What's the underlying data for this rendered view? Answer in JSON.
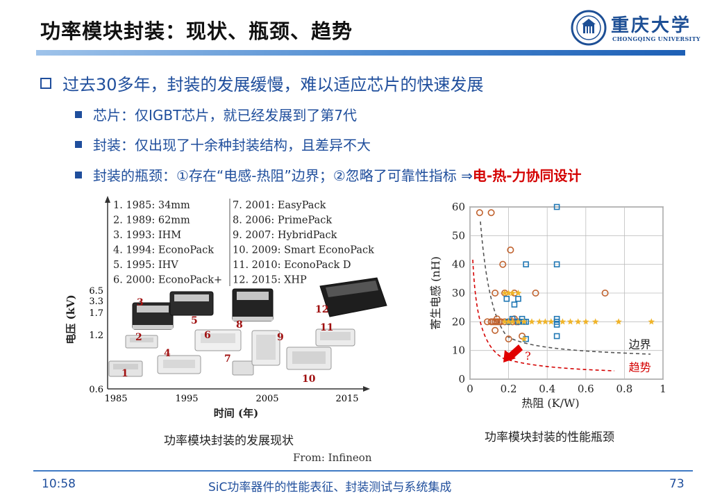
{
  "title": "功率模块封装：现状、瓶颈、趋势",
  "logo": {
    "cn": "重庆大学",
    "en": "CHONGQING UNIVERSITY"
  },
  "bullets": {
    "main": "过去30多年，封装的发展缓慢，难以适应芯片的快速发展",
    "sub1": "芯片：仅IGBT芯片，就已经发展到了第7代",
    "sub2": "封装：仅出现了十余种封装结构，且差异不大",
    "sub3_prefix": "封装的瓶颈：①存在“电感-热阻”边界；②忽略了可靠性指标 ⇒ ",
    "sub3_emph": "电-热-力协同设计"
  },
  "left_figure": {
    "legend_col1": [
      "1. 1985: 34mm",
      "2. 1989: 62mm",
      "3. 1993: IHM",
      "4. 1994: EconoPack",
      "5. 1995: IHV",
      "6. 2000: EconoPack+"
    ],
    "legend_col2": [
      "7. 2001: EasyPack",
      "8. 2006: PrimePack",
      "9. 2007: HybridPack",
      "10. 2009: Smart EconoPack",
      "11. 2010: EconoPack D",
      "12. 2015: XHP"
    ],
    "ylabel": "电压 (kV)",
    "xlabel": "时间 (年)",
    "yticks": [
      "6.5",
      "3.3",
      "1.7",
      "1.2",
      "0.6"
    ],
    "xticks": [
      "1985",
      "1995",
      "2005",
      "2015"
    ],
    "module_labels": [
      "1",
      "2",
      "3",
      "4",
      "5",
      "6",
      "7",
      "8",
      "9",
      "10",
      "11",
      "12"
    ],
    "caption": "功率模块封装的发展现状",
    "source": "From: Infineon"
  },
  "chart_data": {
    "type": "scatter",
    "title": "",
    "xlabel": "热阻 (K/W)",
    "ylabel": "寄生电感 (nH)",
    "xlim": [
      0,
      1
    ],
    "ylim": [
      0,
      60
    ],
    "xticks": [
      "0",
      "0.2",
      "0.4",
      "0.6",
      "0.8",
      "1"
    ],
    "yticks": [
      "0",
      "10",
      "20",
      "30",
      "40",
      "50",
      "60"
    ],
    "grid": true,
    "series": [
      {
        "marker": "circle",
        "color": "#c0622e",
        "points": [
          [
            0.05,
            58
          ],
          [
            0.11,
            58
          ],
          [
            0.21,
            45
          ],
          [
            0.17,
            40
          ],
          [
            0.13,
            30
          ],
          [
            0.18,
            30
          ],
          [
            0.23,
            30
          ],
          [
            0.34,
            30
          ],
          [
            0.7,
            30
          ],
          [
            0.09,
            20
          ],
          [
            0.11,
            20
          ],
          [
            0.12,
            20
          ],
          [
            0.13,
            20
          ],
          [
            0.14,
            20
          ],
          [
            0.15,
            20
          ],
          [
            0.16,
            20
          ],
          [
            0.18,
            20
          ],
          [
            0.2,
            20
          ],
          [
            0.22,
            20
          ],
          [
            0.24,
            20
          ],
          [
            0.25,
            20
          ],
          [
            0.14,
            21
          ],
          [
            0.23,
            21
          ],
          [
            0.13,
            17
          ],
          [
            0.2,
            14
          ],
          [
            0.27,
            15
          ]
        ]
      },
      {
        "marker": "square",
        "color": "#1f77b4",
        "points": [
          [
            0.45,
            60
          ],
          [
            0.29,
            40
          ],
          [
            0.45,
            40
          ],
          [
            0.19,
            28
          ],
          [
            0.23,
            26
          ],
          [
            0.25,
            28
          ],
          [
            0.2,
            20
          ],
          [
            0.22,
            21
          ],
          [
            0.25,
            20
          ],
          [
            0.27,
            21
          ],
          [
            0.28,
            20
          ],
          [
            0.29,
            20
          ],
          [
            0.45,
            20
          ],
          [
            0.45,
            21
          ],
          [
            0.45,
            19
          ],
          [
            0.45,
            15
          ],
          [
            0.29,
            14
          ]
        ]
      },
      {
        "marker": "star",
        "color": "#f0b429",
        "points": [
          [
            0.18,
            30
          ],
          [
            0.2,
            30
          ],
          [
            0.22,
            30
          ],
          [
            0.25,
            30
          ],
          [
            0.18,
            20
          ],
          [
            0.2,
            20
          ],
          [
            0.22,
            20
          ],
          [
            0.25,
            20
          ],
          [
            0.28,
            20
          ],
          [
            0.32,
            20
          ],
          [
            0.36,
            20
          ],
          [
            0.39,
            20
          ],
          [
            0.42,
            20
          ],
          [
            0.48,
            20
          ],
          [
            0.52,
            20
          ],
          [
            0.56,
            20
          ],
          [
            0.6,
            20
          ],
          [
            0.65,
            20
          ],
          [
            0.77,
            20
          ],
          [
            0.94,
            20
          ],
          [
            0.28,
            14
          ]
        ]
      }
    ],
    "annotations": [
      {
        "text": "边界",
        "color": "#222222",
        "x": 0.88,
        "y": 12
      },
      {
        "text": "趋势",
        "color": "#d40000",
        "x": 0.88,
        "y": 4
      },
      {
        "text": "?",
        "color": "#d40000",
        "x": 0.3,
        "y": 8
      }
    ],
    "caption": "功率模块封装的性能瓶颈"
  },
  "footer": {
    "time": "10:58",
    "center": "SiC功率器件的性能表征、封装测试与系统集成",
    "page": "73"
  }
}
